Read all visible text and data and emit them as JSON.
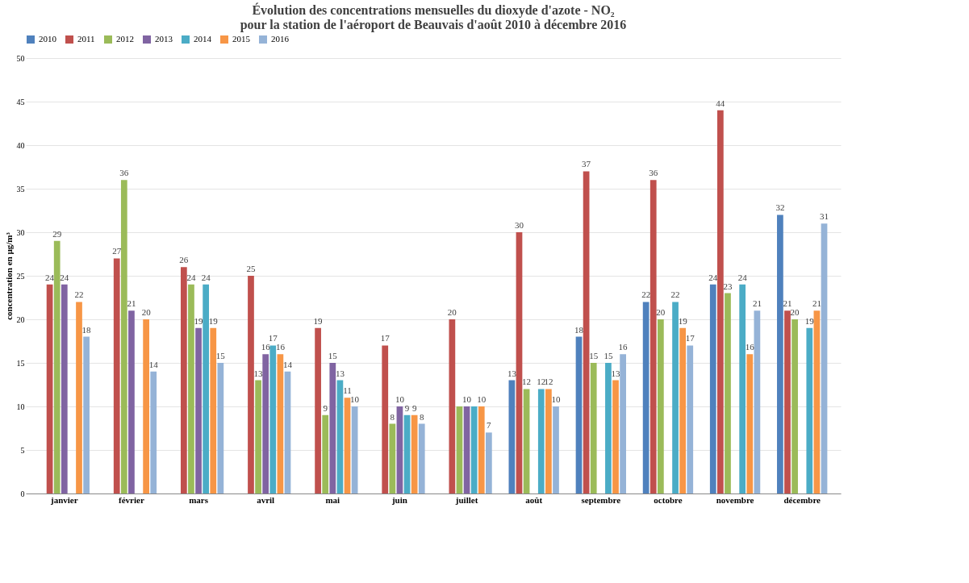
{
  "chart_data": {
    "type": "bar",
    "title": [
      "Évolution des concentrations mensuelles du dioxyde d'azote - NO₂",
      "pour la station de l'aéroport de Beauvais d'août 2010 à décembre 2016"
    ],
    "ylabel": "concentration en µg/m³",
    "categories": [
      "janvier",
      "février",
      "mars",
      "avril",
      "mai",
      "juin",
      "juillet",
      "août",
      "septembre",
      "octobre",
      "novembre",
      "décembre"
    ],
    "series": [
      {
        "name": "2010",
        "color": "#4f81bd",
        "values": [
          null,
          null,
          null,
          null,
          null,
          null,
          null,
          13,
          18,
          22,
          24,
          32
        ],
        "value_labels": [
          null,
          null,
          null,
          null,
          null,
          null,
          null,
          "13",
          "18",
          "22",
          "24",
          "32"
        ]
      },
      {
        "name": "2011",
        "color": "#c0504d",
        "values": [
          24,
          27,
          26,
          25,
          19,
          17,
          20,
          30,
          37,
          36,
          44,
          21
        ],
        "value_labels": [
          "24",
          "27",
          "26",
          "25",
          "19",
          "17",
          "20",
          "30",
          "37",
          "36",
          "44",
          "21"
        ]
      },
      {
        "name": "2012",
        "color": "#9bbb59",
        "values": [
          29,
          36,
          24,
          13,
          9,
          8,
          10,
          12,
          15,
          20,
          23,
          20
        ],
        "value_labels": [
          "29",
          "36",
          "24",
          "13",
          "9",
          "8",
          null,
          "12",
          "15",
          "20",
          "23",
          "20"
        ]
      },
      {
        "name": "2013",
        "color": "#8064a2",
        "values": [
          24,
          21,
          19,
          16,
          15,
          10,
          10,
          null,
          null,
          null,
          null,
          null
        ],
        "value_labels": [
          "24",
          "21",
          "19",
          "16",
          "15",
          "10",
          "10",
          null,
          null,
          null,
          null,
          null
        ]
      },
      {
        "name": "2014",
        "color": "#4bacc6",
        "values": [
          null,
          null,
          24,
          17,
          13,
          9,
          10,
          12,
          15,
          22,
          24,
          19
        ],
        "value_labels": [
          null,
          null,
          "24",
          "17",
          "13",
          "9",
          null,
          "12",
          "15",
          "22",
          "24",
          "19"
        ]
      },
      {
        "name": "2015",
        "color": "#f79646",
        "values": [
          22,
          20,
          19,
          16,
          11,
          9,
          10,
          12,
          13,
          19,
          16,
          21
        ],
        "value_labels": [
          "22",
          "20",
          "19",
          "16",
          "11",
          "9",
          "10",
          "12",
          "13",
          "19",
          "16",
          "21"
        ]
      },
      {
        "name": "2016",
        "color": "#95b3d7",
        "values": [
          18,
          14,
          15,
          14,
          10,
          8,
          7,
          10,
          16,
          17,
          21,
          31
        ],
        "value_labels": [
          "18",
          "14",
          "15",
          "14",
          "10",
          "8",
          "7",
          "10",
          "16",
          "17",
          "21",
          "31"
        ]
      }
    ],
    "ylim": [
      0,
      50
    ],
    "yticks": [
      0,
      5,
      10,
      15,
      20,
      25,
      30,
      35,
      40,
      45,
      50
    ],
    "grid": "y",
    "legend": "top"
  }
}
